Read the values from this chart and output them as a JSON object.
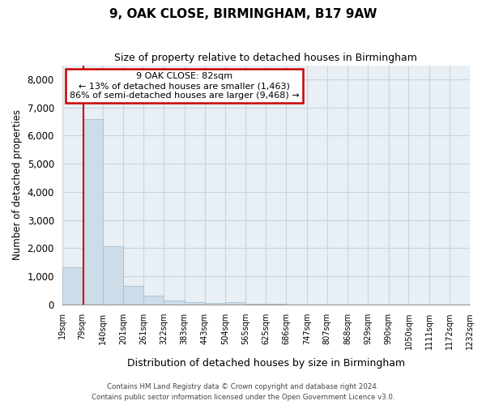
{
  "title": "9, OAK CLOSE, BIRMINGHAM, B17 9AW",
  "subtitle": "Size of property relative to detached houses in Birmingham",
  "xlabel": "Distribution of detached houses by size in Birmingham",
  "ylabel": "Number of detached properties",
  "property_size": 82,
  "property_label": "9 OAK CLOSE: 82sqm",
  "annotation_line1": "← 13% of detached houses are smaller (1,463)",
  "annotation_line2": "86% of semi-detached houses are larger (9,468) →",
  "bar_color": "#ccdce8",
  "bar_edge_color": "#a8c0d0",
  "vline_color": "#cc0000",
  "annotation_box_color": "#cc0000",
  "grid_color": "#c8d4de",
  "background_color": "#e8eff5",
  "footer_line1": "Contains HM Land Registry data © Crown copyright and database right 2024.",
  "footer_line2": "Contains public sector information licensed under the Open Government Licence v3.0.",
  "bin_edges": [
    19,
    79,
    140,
    201,
    261,
    322,
    383,
    443,
    504,
    565,
    625,
    686,
    747,
    807,
    868,
    929,
    990,
    1050,
    1111,
    1172,
    1232
  ],
  "bin_labels": [
    "19sqm",
    "79sqm",
    "140sqm",
    "201sqm",
    "261sqm",
    "322sqm",
    "383sqm",
    "443sqm",
    "504sqm",
    "565sqm",
    "625sqm",
    "686sqm",
    "747sqm",
    "807sqm",
    "868sqm",
    "929sqm",
    "990sqm",
    "1050sqm",
    "1111sqm",
    "1172sqm",
    "1232sqm"
  ],
  "bar_heights": [
    1320,
    6600,
    2060,
    650,
    295,
    135,
    80,
    35,
    90,
    5,
    5,
    0,
    0,
    0,
    0,
    0,
    0,
    0,
    0,
    0
  ],
  "ylim": [
    0,
    8500
  ],
  "yticks": [
    0,
    1000,
    2000,
    3000,
    4000,
    5000,
    6000,
    7000,
    8000
  ]
}
